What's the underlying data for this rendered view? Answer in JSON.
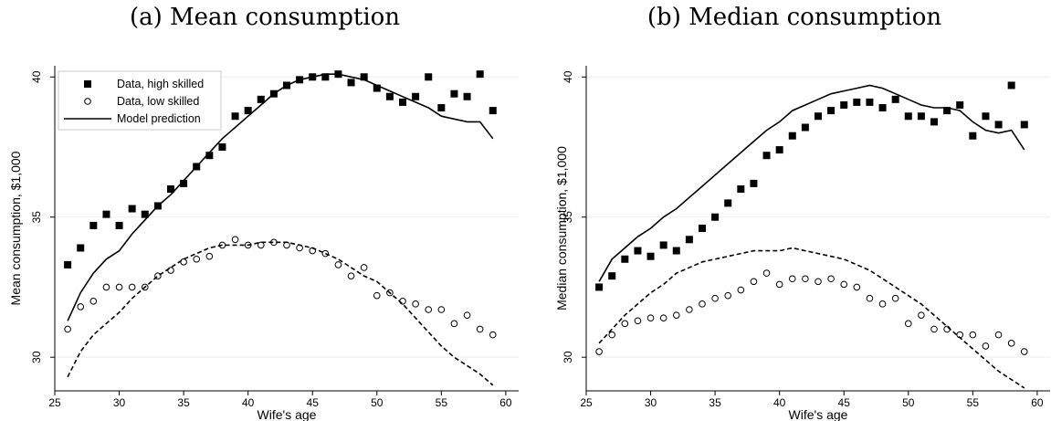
{
  "titles": {
    "left": "(a) Mean consumption",
    "right": "(b) Median consumption"
  },
  "colors": {
    "series": "#000000",
    "grid": "#eeeeee",
    "axis": "#000000"
  },
  "chart_data": [
    {
      "type": "scatter",
      "title": "(a) Mean consumption",
      "xlabel": "Wife's age",
      "ylabel": "Mean consumption, $1,000",
      "xlim": [
        25,
        61
      ],
      "ylim": [
        28.8,
        40.4
      ],
      "xticks": [
        25,
        30,
        35,
        40,
        45,
        50,
        55,
        60
      ],
      "yticks": [
        30,
        35,
        40
      ],
      "grid": true,
      "legend": {
        "placement": "top-left",
        "entries": [
          "Data, high skilled",
          "Data, low skilled",
          "Model prediction"
        ]
      },
      "x": [
        26,
        27,
        28,
        29,
        30,
        31,
        32,
        33,
        34,
        35,
        36,
        37,
        38,
        39,
        40,
        41,
        42,
        43,
        44,
        45,
        46,
        47,
        48,
        49,
        50,
        51,
        52,
        53,
        54,
        55,
        56,
        57,
        58,
        59
      ],
      "series": [
        {
          "name": "Data, high skilled",
          "marker": "filled-square",
          "values": [
            33.3,
            33.9,
            34.7,
            35.1,
            34.7,
            35.3,
            35.1,
            35.4,
            36.0,
            36.2,
            36.8,
            37.2,
            37.5,
            38.6,
            38.8,
            39.2,
            39.4,
            39.7,
            39.9,
            40.0,
            40.0,
            40.1,
            39.8,
            40.0,
            39.6,
            39.3,
            39.1,
            39.3,
            40.0,
            38.9,
            39.4,
            39.3,
            40.1,
            38.8
          ]
        },
        {
          "name": "Data, low skilled",
          "marker": "hollow-circle",
          "values": [
            31.0,
            31.8,
            32.0,
            32.5,
            32.5,
            32.5,
            32.5,
            32.9,
            33.1,
            33.4,
            33.5,
            33.6,
            34.0,
            34.2,
            34.0,
            34.0,
            34.1,
            34.0,
            33.9,
            33.8,
            33.7,
            33.3,
            32.9,
            33.2,
            32.2,
            32.3,
            32.0,
            31.9,
            31.7,
            31.7,
            31.2,
            31.5,
            31.0,
            30.8
          ]
        },
        {
          "name": "Model prediction",
          "style": "solid",
          "values": [
            31.3,
            32.3,
            33.0,
            33.5,
            33.8,
            34.4,
            34.9,
            35.4,
            35.8,
            36.3,
            36.8,
            37.3,
            37.8,
            38.2,
            38.6,
            39.0,
            39.4,
            39.7,
            39.9,
            40.0,
            40.1,
            40.1,
            40.0,
            39.9,
            39.7,
            39.5,
            39.3,
            39.1,
            38.9,
            38.6,
            38.5,
            38.4,
            38.4,
            37.8
          ]
        },
        {
          "style": "dashed",
          "values": [
            29.3,
            30.2,
            30.8,
            31.2,
            31.6,
            32.1,
            32.5,
            32.9,
            33.2,
            33.5,
            33.7,
            33.9,
            34.0,
            34.0,
            34.0,
            34.1,
            34.1,
            34.1,
            34.0,
            33.9,
            33.7,
            33.5,
            33.2,
            32.9,
            32.7,
            32.3,
            31.9,
            31.4,
            30.9,
            30.4,
            30.0,
            29.7,
            29.4,
            29.0
          ]
        }
      ]
    },
    {
      "type": "scatter",
      "title": "(b) Median consumption",
      "xlabel": "Wife's age",
      "ylabel": "Median consumption, $1,000",
      "xlim": [
        25,
        61
      ],
      "ylim": [
        28.8,
        40.4
      ],
      "xticks": [
        25,
        30,
        35,
        40,
        45,
        50,
        55,
        60
      ],
      "yticks": [
        30,
        35,
        40
      ],
      "grid": true,
      "x": [
        26,
        27,
        28,
        29,
        30,
        31,
        32,
        33,
        34,
        35,
        36,
        37,
        38,
        39,
        40,
        41,
        42,
        43,
        44,
        45,
        46,
        47,
        48,
        49,
        50,
        51,
        52,
        53,
        54,
        55,
        56,
        57,
        58,
        59
      ],
      "series": [
        {
          "name": "Data, high skilled",
          "marker": "filled-square",
          "values": [
            32.5,
            32.9,
            33.5,
            33.8,
            33.6,
            34.0,
            33.8,
            34.2,
            34.6,
            35.0,
            35.5,
            36.0,
            36.2,
            37.2,
            37.4,
            37.9,
            38.2,
            38.6,
            38.8,
            39.0,
            39.1,
            39.1,
            38.9,
            39.2,
            38.6,
            38.6,
            38.4,
            38.8,
            39.0,
            37.9,
            38.6,
            38.3,
            39.7,
            38.3
          ]
        },
        {
          "name": "Data, low skilled",
          "marker": "hollow-circle",
          "values": [
            30.2,
            30.8,
            31.2,
            31.3,
            31.4,
            31.4,
            31.5,
            31.7,
            31.9,
            32.1,
            32.2,
            32.4,
            32.7,
            33.0,
            32.6,
            32.8,
            32.8,
            32.7,
            32.8,
            32.6,
            32.5,
            32.1,
            31.9,
            32.1,
            31.2,
            31.5,
            31.0,
            31.0,
            30.8,
            30.8,
            30.4,
            30.8,
            30.5,
            30.2
          ]
        },
        {
          "name": "Model prediction",
          "style": "solid",
          "values": [
            32.7,
            33.5,
            33.9,
            34.3,
            34.6,
            35.0,
            35.3,
            35.7,
            36.1,
            36.5,
            36.9,
            37.3,
            37.7,
            38.1,
            38.4,
            38.8,
            39.0,
            39.2,
            39.4,
            39.5,
            39.6,
            39.7,
            39.6,
            39.4,
            39.2,
            39.0,
            38.9,
            38.9,
            38.8,
            38.4,
            38.1,
            38.0,
            38.1,
            37.4
          ]
        },
        {
          "style": "dashed",
          "values": [
            30.5,
            31.0,
            31.5,
            31.9,
            32.3,
            32.6,
            33.0,
            33.2,
            33.4,
            33.5,
            33.6,
            33.7,
            33.8,
            33.8,
            33.8,
            33.9,
            33.8,
            33.7,
            33.6,
            33.5,
            33.3,
            33.1,
            32.8,
            32.5,
            32.2,
            31.9,
            31.5,
            31.1,
            30.7,
            30.3,
            29.9,
            29.5,
            29.2,
            28.9
          ]
        }
      ]
    }
  ]
}
